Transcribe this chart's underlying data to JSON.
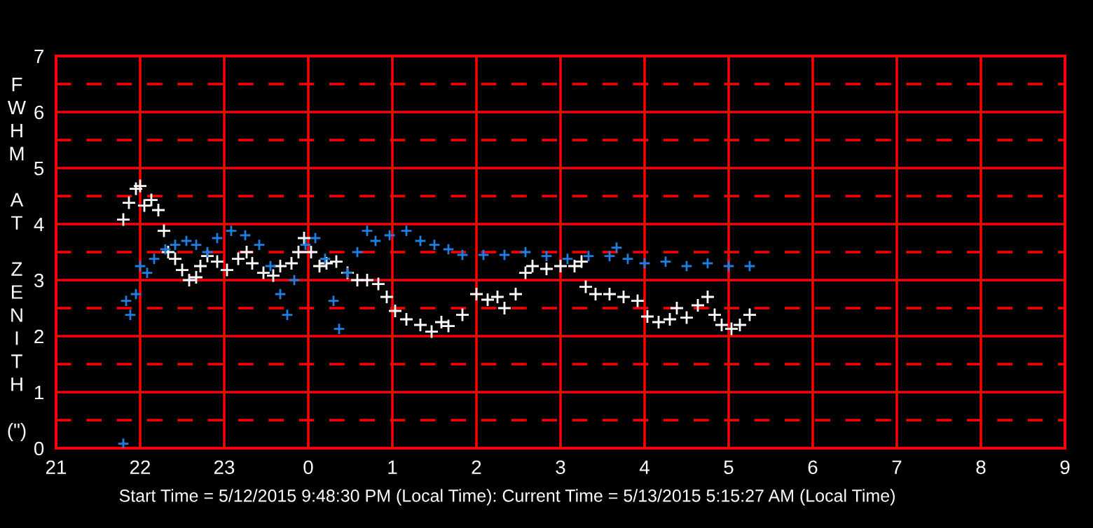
{
  "chart_data": {
    "type": "scatter",
    "ylabel": "FWHM AT ZENITH (\")",
    "annotations": [
      "Start Time = 5/12/2015 9:48:30 PM (Local Time): Current Time = 5/13/2015 5:15:27 AM (Local Time)"
    ],
    "xlim": [
      "2015-05-12T21:00",
      "2015-05-13T09:00"
    ],
    "ylim": [
      0,
      7
    ],
    "xticks": [
      {
        "value": "2015-05-12T21:00",
        "label": "21"
      },
      {
        "value": "2015-05-12T22:00",
        "label": "22"
      },
      {
        "value": "2015-05-12T23:00",
        "label": "23"
      },
      {
        "value": "2015-05-13T00:00",
        "label": "0"
      },
      {
        "value": "2015-05-13T01:00",
        "label": "1"
      },
      {
        "value": "2015-05-13T02:00",
        "label": "2"
      },
      {
        "value": "2015-05-13T03:00",
        "label": "3"
      },
      {
        "value": "2015-05-13T04:00",
        "label": "4"
      },
      {
        "value": "2015-05-13T05:00",
        "label": "5"
      },
      {
        "value": "2015-05-13T06:00",
        "label": "6"
      },
      {
        "value": "2015-05-13T07:00",
        "label": "7"
      },
      {
        "value": "2015-05-13T08:00",
        "label": "8"
      },
      {
        "value": "2015-05-13T09:00",
        "label": "9"
      }
    ],
    "yticks": [
      0,
      {
        "value": 0.5,
        "label": null
      },
      1,
      {
        "value": 1.5,
        "label": null
      },
      2,
      {
        "value": 2.5,
        "label": null
      },
      3,
      {
        "value": 3.5,
        "label": null
      },
      4,
      {
        "value": 4.5,
        "label": null
      },
      5,
      {
        "value": 5.5,
        "label": null
      },
      6,
      {
        "value": 6.5,
        "label": null
      },
      7
    ],
    "grid": true,
    "marker": "cross",
    "series": [
      {
        "color": "#ffffff",
        "x": [
          "2015-05-12T21:48",
          "2015-05-12T21:52",
          "2015-05-12T21:57",
          "2015-05-12T22:00",
          "2015-05-12T22:03",
          "2015-05-12T22:08",
          "2015-05-12T22:13",
          "2015-05-12T22:17",
          "2015-05-12T22:20",
          "2015-05-12T22:25",
          "2015-05-12T22:30",
          "2015-05-12T22:35",
          "2015-05-12T22:40",
          "2015-05-12T22:43",
          "2015-05-12T22:48",
          "2015-05-12T22:55",
          "2015-05-12T23:02",
          "2015-05-12T23:10",
          "2015-05-12T23:16",
          "2015-05-12T23:20",
          "2015-05-12T23:28",
          "2015-05-12T23:35",
          "2015-05-12T23:40",
          "2015-05-12T23:48",
          "2015-05-12T23:53",
          "2015-05-12T23:57",
          "2015-05-13T00:02",
          "2015-05-13T00:08",
          "2015-05-13T00:13",
          "2015-05-13T00:20",
          "2015-05-13T00:28",
          "2015-05-13T00:35",
          "2015-05-13T00:42",
          "2015-05-13T00:50",
          "2015-05-13T00:56",
          "2015-05-13T01:02",
          "2015-05-13T01:10",
          "2015-05-13T01:20",
          "2015-05-13T01:28",
          "2015-05-13T01:35",
          "2015-05-13T01:40",
          "2015-05-13T01:50",
          "2015-05-13T02:00",
          "2015-05-13T02:08",
          "2015-05-13T02:15",
          "2015-05-13T02:20",
          "2015-05-13T02:28",
          "2015-05-13T02:35",
          "2015-05-13T02:40",
          "2015-05-13T02:50",
          "2015-05-13T03:00",
          "2015-05-13T03:10",
          "2015-05-13T03:15",
          "2015-05-13T03:18",
          "2015-05-13T03:25",
          "2015-05-13T03:35",
          "2015-05-13T03:45",
          "2015-05-13T03:55",
          "2015-05-13T04:02",
          "2015-05-13T04:10",
          "2015-05-13T04:18",
          "2015-05-13T04:23",
          "2015-05-13T04:30",
          "2015-05-13T04:38",
          "2015-05-13T04:45",
          "2015-05-13T04:50",
          "2015-05-13T04:55",
          "2015-05-13T05:02",
          "2015-05-13T05:08",
          "2015-05-13T05:15"
        ],
        "values": [
          4.08,
          4.38,
          4.63,
          4.68,
          4.33,
          4.43,
          4.25,
          3.88,
          3.5,
          3.38,
          3.18,
          3.0,
          3.05,
          3.25,
          3.43,
          3.33,
          3.18,
          3.38,
          3.5,
          3.3,
          3.13,
          3.08,
          3.25,
          3.3,
          3.5,
          3.75,
          3.5,
          3.25,
          3.3,
          3.33,
          3.13,
          3.0,
          3.0,
          2.93,
          2.7,
          2.45,
          2.3,
          2.2,
          2.08,
          2.25,
          2.18,
          2.38,
          2.75,
          2.65,
          2.7,
          2.5,
          2.75,
          3.13,
          3.25,
          3.2,
          3.25,
          3.25,
          3.33,
          2.88,
          2.75,
          2.75,
          2.7,
          2.63,
          2.35,
          2.25,
          2.3,
          2.5,
          2.33,
          2.55,
          2.7,
          2.38,
          2.2,
          2.13,
          2.2,
          2.38
        ]
      },
      {
        "color": "#1e7fe0",
        "x": [
          "2015-05-12T21:48",
          "2015-05-12T21:50",
          "2015-05-12T21:53",
          "2015-05-12T21:57",
          "2015-05-12T22:00",
          "2015-05-12T22:05",
          "2015-05-12T22:10",
          "2015-05-12T22:18",
          "2015-05-12T22:25",
          "2015-05-12T22:33",
          "2015-05-12T22:40",
          "2015-05-12T22:48",
          "2015-05-12T22:55",
          "2015-05-12T23:05",
          "2015-05-12T23:15",
          "2015-05-12T23:25",
          "2015-05-12T23:33",
          "2015-05-12T23:40",
          "2015-05-12T23:45",
          "2015-05-12T23:50",
          "2015-05-12T23:58",
          "2015-05-13T00:05",
          "2015-05-13T00:12",
          "2015-05-13T00:18",
          "2015-05-13T00:22",
          "2015-05-13T00:28",
          "2015-05-13T00:35",
          "2015-05-13T00:42",
          "2015-05-13T00:48",
          "2015-05-13T00:58",
          "2015-05-13T01:10",
          "2015-05-13T01:20",
          "2015-05-13T01:30",
          "2015-05-13T01:40",
          "2015-05-13T01:50",
          "2015-05-13T02:05",
          "2015-05-13T02:20",
          "2015-05-13T02:35",
          "2015-05-13T02:50",
          "2015-05-13T03:05",
          "2015-05-13T03:20",
          "2015-05-13T03:35",
          "2015-05-13T03:40",
          "2015-05-13T03:48",
          "2015-05-13T04:00",
          "2015-05-13T04:15",
          "2015-05-13T04:30",
          "2015-05-13T04:45",
          "2015-05-13T05:00",
          "2015-05-13T05:15"
        ],
        "values": [
          0.08,
          2.63,
          2.38,
          2.75,
          3.25,
          3.13,
          3.38,
          3.55,
          3.63,
          3.7,
          3.63,
          3.5,
          3.75,
          3.88,
          3.8,
          3.63,
          3.25,
          2.75,
          2.38,
          3.0,
          3.63,
          3.75,
          3.38,
          2.63,
          2.13,
          3.13,
          3.5,
          3.88,
          3.7,
          3.8,
          3.88,
          3.7,
          3.63,
          3.55,
          3.45,
          3.45,
          3.45,
          3.5,
          3.43,
          3.38,
          3.43,
          3.43,
          3.58,
          3.38,
          3.3,
          3.33,
          3.25,
          3.3,
          3.25,
          3.25
        ]
      }
    ]
  }
}
